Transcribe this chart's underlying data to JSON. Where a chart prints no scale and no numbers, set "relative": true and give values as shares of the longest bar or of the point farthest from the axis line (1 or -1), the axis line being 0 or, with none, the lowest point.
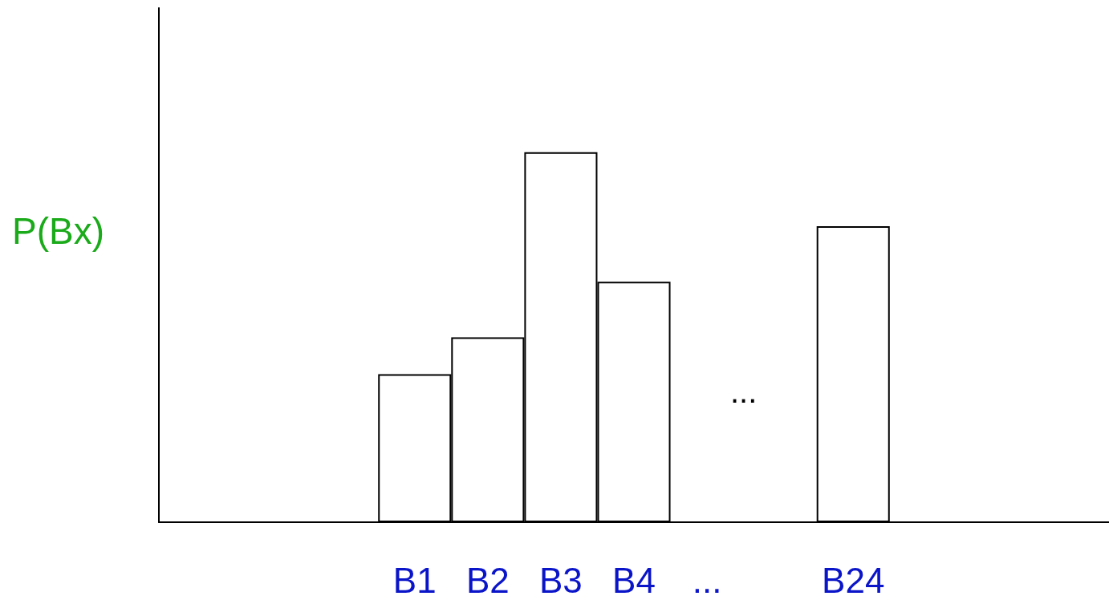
{
  "chart_data": {
    "type": "bar",
    "relative": true,
    "ylabel": "P(Bx)",
    "categories": [
      null,
      null,
      null,
      "B1",
      "B2",
      "B3",
      "B4",
      "...",
      null,
      "B24",
      null,
      null,
      null
    ],
    "values": [
      null,
      null,
      null,
      0.4,
      0.5,
      1,
      0.65,
      null,
      null,
      0.8,
      null,
      null,
      null
    ],
    "color": "#ffffff",
    "annotations": [
      "..."
    ]
  }
}
